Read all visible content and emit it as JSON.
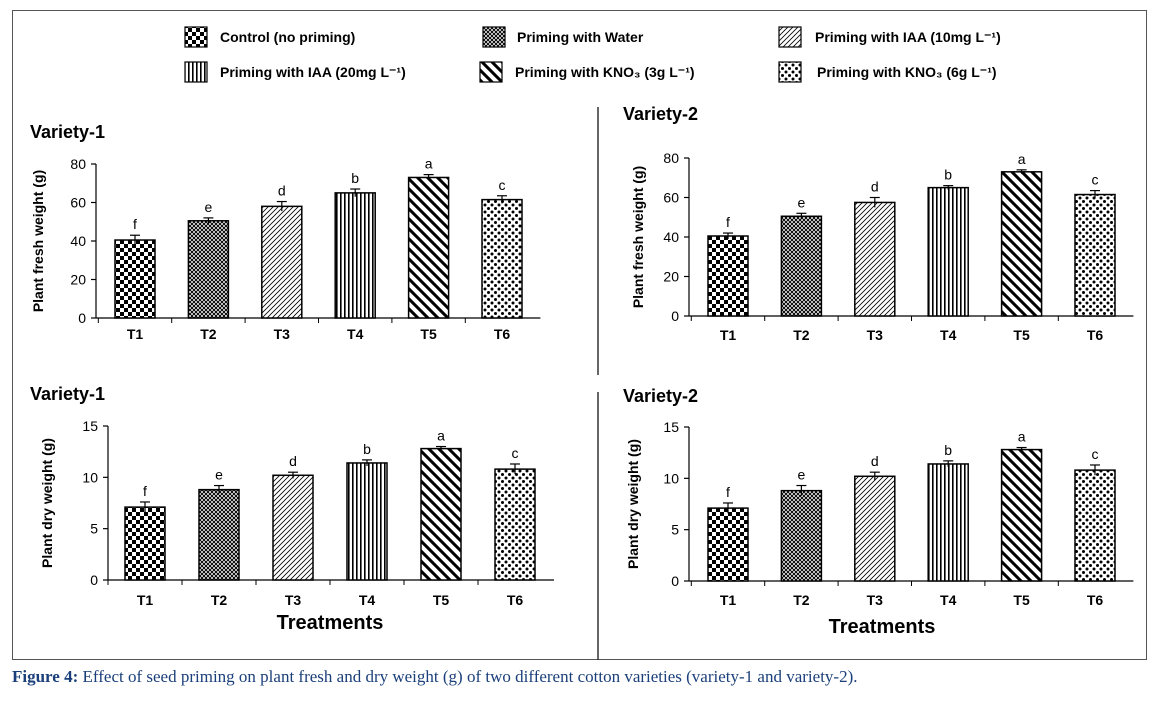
{
  "legend": [
    {
      "label": "Control  (no priming)",
      "pattern": "checker"
    },
    {
      "label": "Priming with Water",
      "pattern": "crosshatch"
    },
    {
      "label": "Priming with IAA (10mg  L⁻¹)",
      "pattern": "diag-dense"
    },
    {
      "label": "Priming with IAA (20mg  L⁻¹)",
      "pattern": "vertical"
    },
    {
      "label": "Priming with KNO₃ (3g  L⁻¹)",
      "pattern": "diag-bold"
    },
    {
      "label": "Priming with KNO₃ (6g  L⁻¹)",
      "pattern": "dots"
    }
  ],
  "chart_data": [
    {
      "type": "bar",
      "title": "Variety-1",
      "ylabel": "Plant fresh  weight (g)",
      "xlabel": "",
      "categories": [
        "T1",
        "T2",
        "T3",
        "T4",
        "T5",
        "T6"
      ],
      "values": [
        40.5,
        50.5,
        58,
        65,
        73,
        61.5
      ],
      "errors": [
        2.5,
        1.5,
        2.5,
        2,
        1.5,
        2
      ],
      "letters": [
        "f",
        "e",
        "d",
        "b",
        "a",
        "c"
      ],
      "ylim": [
        0,
        80
      ],
      "yticks": [
        0,
        20,
        40,
        60,
        80
      ]
    },
    {
      "type": "bar",
      "title": "Variety-2",
      "ylabel": "Plant fresh  weight (g)",
      "xlabel": "",
      "categories": [
        "T1",
        "T2",
        "T3",
        "T4",
        "T5",
        "T6"
      ],
      "values": [
        40.5,
        50.5,
        57.5,
        65,
        73,
        61.5
      ],
      "errors": [
        1.5,
        1.5,
        2.5,
        1,
        1,
        2
      ],
      "letters": [
        "f",
        "e",
        "d",
        "b",
        "a",
        "c"
      ],
      "ylim": [
        0,
        80
      ],
      "yticks": [
        0,
        20,
        40,
        60,
        80
      ]
    },
    {
      "type": "bar",
      "title": "Variety-1",
      "ylabel": "Plant dry weight (g)",
      "xlabel": "Treatments",
      "categories": [
        "T1",
        "T2",
        "T3",
        "T4",
        "T5",
        "T6"
      ],
      "values": [
        7.1,
        8.8,
        10.2,
        11.4,
        12.8,
        10.8
      ],
      "errors": [
        0.5,
        0.4,
        0.3,
        0.3,
        0.2,
        0.5
      ],
      "letters": [
        "f",
        "e",
        "d",
        "b",
        "a",
        "c"
      ],
      "ylim": [
        0,
        15
      ],
      "yticks": [
        0,
        5,
        10,
        15
      ]
    },
    {
      "type": "bar",
      "title": "Variety-2",
      "ylabel": "Plant dry weight (g)",
      "xlabel": "Treatments",
      "categories": [
        "T1",
        "T2",
        "T3",
        "T4",
        "T5",
        "T6"
      ],
      "values": [
        7.1,
        8.8,
        10.2,
        11.4,
        12.8,
        10.8
      ],
      "errors": [
        0.5,
        0.5,
        0.4,
        0.3,
        0.2,
        0.5
      ],
      "letters": [
        "f",
        "e",
        "d",
        "b",
        "a",
        "c"
      ],
      "ylim": [
        0,
        15
      ],
      "yticks": [
        0,
        5,
        10,
        15
      ]
    }
  ],
  "caption": {
    "label": "Figure 4:",
    "text": " Effect of seed priming on plant fresh and dry weight (g) of two different cotton varieties (variety-1 and variety-2)."
  }
}
